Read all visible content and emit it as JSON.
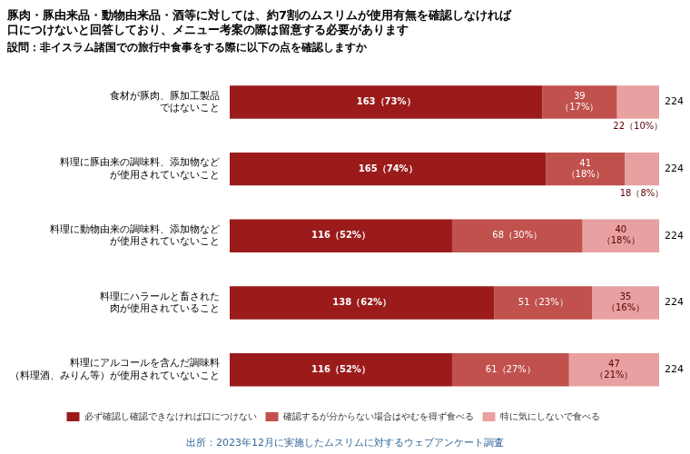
{
  "chart_data": {
    "type": "bar",
    "orientation": "horizontal",
    "stacked": true,
    "title": [
      "豚肉・豚由来品・動物由来品・酒等に対しては、約7割のムスリムが使用有無を確認しなければ",
      "口につけないと回答しており、メニュー考案の際は留意する必要があります"
    ],
    "subtitle": "設問：非イスラム諸国での旅行中食事をする際に以下の点を確認しますか",
    "annotations": [
      "出所：2023年12月に実施したムスリムに対するウェブアンケート調査"
    ],
    "categories": [
      "食材が豚肉、豚加工製品\nではないこと",
      "料理に豚由来の調味料、添加物など\nが使用されていないこと",
      "料理に動物由来の調味料、添加物など\nが使用されていないこと",
      "料理にハラールと畜された\n肉が使用されていること",
      "料理にアルコールを含んだ調味料\n（料理酒、みりん等）が使用されていないこと"
    ],
    "series": [
      {
        "name": "必ず確認し確認できなければ口につけない",
        "color": "#9B1B1B",
        "values": [
          163,
          165,
          116,
          138,
          116
        ],
        "value_labels": [
          "163（73%）",
          "165（74%）",
          "116（52%）",
          "138（62%）",
          "116（52%）"
        ]
      },
      {
        "name": "確認するが分からない場合はやむを得ず食べる",
        "color": "#C0514D",
        "values": [
          39,
          41,
          68,
          51,
          61
        ],
        "value_labels": [
          "39\n（17%）",
          "41\n（18%）",
          "68（30%）",
          "51（23%）",
          "61（27%）"
        ]
      },
      {
        "name": "特に気にしないで食べる",
        "color": "#E8A0A0",
        "values": [
          22,
          18,
          40,
          35,
          47
        ],
        "value_labels": [
          "22（10%）",
          "18（8%）",
          "40\n（18%）",
          "35\n（16%）",
          "47\n（21%）"
        ]
      }
    ],
    "totals": [
      224,
      224,
      224,
      224,
      224
    ],
    "xlim": [
      0,
      224
    ],
    "grid": false,
    "legend": "bottom",
    "data_labels": true,
    "tick_labels": "y"
  }
}
